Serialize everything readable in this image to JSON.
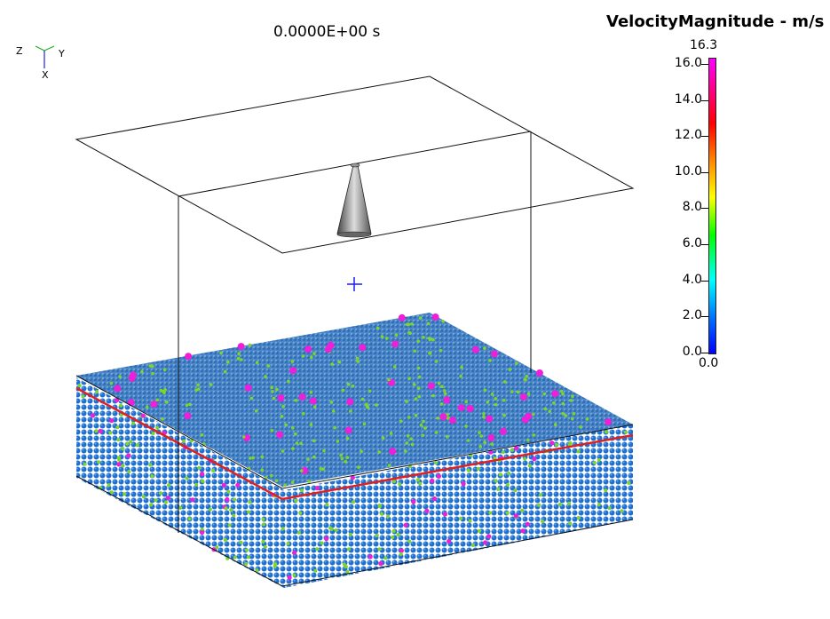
{
  "header": {
    "time": "0.0000E+00 s"
  },
  "legend": {
    "title": "VelocityMagnitude - m/s",
    "max_label": "16.3",
    "min_label": "0.0",
    "ticks": [
      "16.0",
      "14.0",
      "12.0",
      "10.0",
      "8.0",
      "6.0",
      "4.0",
      "2.0",
      "0.0"
    ],
    "colors": [
      "#0000ff",
      "#00ffff",
      "#00ff00",
      "#ffff00",
      "#ff8000",
      "#ff0000",
      "#ff00ff"
    ]
  },
  "axes": {
    "z": "Z",
    "y": "Y",
    "x": "X"
  },
  "scene": {
    "particle_base_color": "#1e6fd0",
    "particle_accent_color": "#7cd62a",
    "particle_hot_color": "#ee1fd8",
    "boundary_color": "#e02020"
  }
}
